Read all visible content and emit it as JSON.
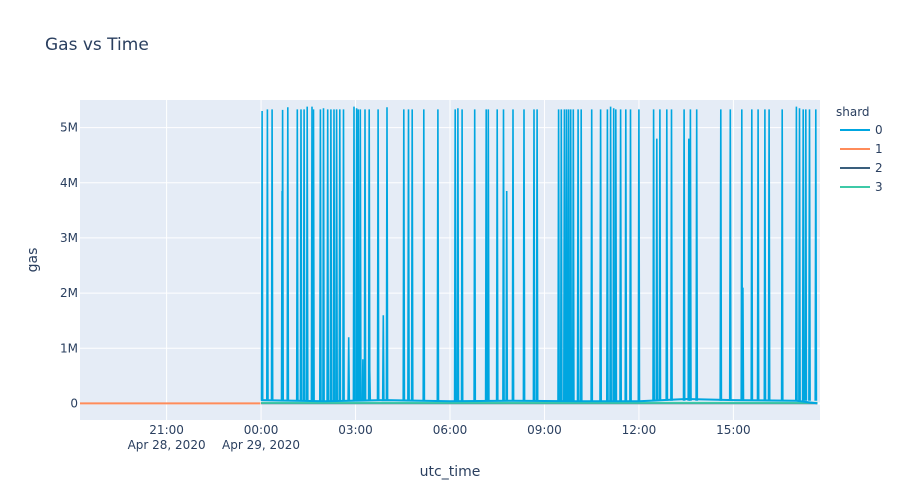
{
  "chart_data": {
    "type": "line",
    "title": "Gas vs Time",
    "xlabel": "utc_time",
    "ylabel": "gas",
    "legend_title": "shard",
    "legend_position": "right",
    "grid": true,
    "colors": {
      "plot_bg": "#e5ecf6",
      "grid": "#ffffff",
      "text": "#2a3f5f"
    },
    "x_start": "2020-04-28 18:15",
    "x_end": "2020-04-29 17:45",
    "ylim": [
      -300000,
      5500000
    ],
    "x_ticks": [
      {
        "t": "2020-04-28 21:00",
        "label": "21:00",
        "sublabel": "Apr 28, 2020"
      },
      {
        "t": "2020-04-29 00:00",
        "label": "00:00",
        "sublabel": "Apr 29, 2020"
      },
      {
        "t": "2020-04-29 03:00",
        "label": "03:00",
        "sublabel": ""
      },
      {
        "t": "2020-04-29 06:00",
        "label": "06:00",
        "sublabel": ""
      },
      {
        "t": "2020-04-29 09:00",
        "label": "09:00",
        "sublabel": ""
      },
      {
        "t": "2020-04-29 12:00",
        "label": "12:00",
        "sublabel": ""
      },
      {
        "t": "2020-04-29 15:00",
        "label": "15:00",
        "sublabel": ""
      }
    ],
    "y_ticks": [
      {
        "v": 0,
        "label": "0"
      },
      {
        "v": 1000000,
        "label": "1M"
      },
      {
        "v": 2000000,
        "label": "2M"
      },
      {
        "v": 3000000,
        "label": "3M"
      },
      {
        "v": 4000000,
        "label": "4M"
      },
      {
        "v": 5000000,
        "label": "5M"
      }
    ],
    "series": [
      {
        "name": "0",
        "color": "#00a6e0",
        "baseline": [
          [
            "2020-04-29 00:00",
            60000
          ],
          [
            "2020-04-29 02:00",
            40000
          ],
          [
            "2020-04-29 04:00",
            60000
          ],
          [
            "2020-04-29 06:00",
            40000
          ],
          [
            "2020-04-29 08:00",
            50000
          ],
          [
            "2020-04-29 10:00",
            40000
          ],
          [
            "2020-04-29 12:00",
            40000
          ],
          [
            "2020-04-29 13:30",
            80000
          ],
          [
            "2020-04-29 15:00",
            60000
          ],
          [
            "2020-04-29 17:00",
            50000
          ],
          [
            "2020-04-29 17:40",
            0
          ]
        ],
        "spikes": [
          [
            "2020-04-29 00:02",
            5300000
          ],
          [
            "2020-04-29 00:12",
            5330000
          ],
          [
            "2020-04-29 00:21",
            5330000
          ],
          [
            "2020-04-29 00:40",
            3850000
          ],
          [
            "2020-04-29 00:41",
            5320000
          ],
          [
            "2020-04-29 00:51",
            5370000
          ],
          [
            "2020-04-29 01:09",
            5330000
          ],
          [
            "2020-04-29 01:16",
            5330000
          ],
          [
            "2020-04-29 01:22",
            5330000
          ],
          [
            "2020-04-29 01:28",
            5380000
          ],
          [
            "2020-04-29 01:37",
            5380000
          ],
          [
            "2020-04-29 01:40",
            5330000
          ],
          [
            "2020-04-29 01:53",
            5330000
          ],
          [
            "2020-04-29 01:59",
            5350000
          ],
          [
            "2020-04-29 02:07",
            5330000
          ],
          [
            "2020-04-29 02:13",
            5330000
          ],
          [
            "2020-04-29 02:19",
            5330000
          ],
          [
            "2020-04-29 02:24",
            5330000
          ],
          [
            "2020-04-29 02:30",
            5330000
          ],
          [
            "2020-04-29 02:37",
            5330000
          ],
          [
            "2020-04-29 02:47",
            1200000
          ],
          [
            "2020-04-29 02:57",
            5380000
          ],
          [
            "2020-04-29 03:02",
            5350000
          ],
          [
            "2020-04-29 03:05",
            5330000
          ],
          [
            "2020-04-29 03:09",
            5330000
          ],
          [
            "2020-04-29 03:14",
            800000
          ],
          [
            "2020-04-29 03:18",
            5330000
          ],
          [
            "2020-04-29 03:26",
            5330000
          ],
          [
            "2020-04-29 03:27",
            600000
          ],
          [
            "2020-04-29 03:43",
            5330000
          ],
          [
            "2020-04-29 03:53",
            1600000
          ],
          [
            "2020-04-29 04:00",
            5370000
          ],
          [
            "2020-04-29 04:32",
            5330000
          ],
          [
            "2020-04-29 04:41",
            5330000
          ],
          [
            "2020-04-29 04:48",
            5330000
          ],
          [
            "2020-04-29 05:10",
            5330000
          ],
          [
            "2020-04-29 05:37",
            5330000
          ],
          [
            "2020-04-29 06:10",
            5330000
          ],
          [
            "2020-04-29 06:15",
            5350000
          ],
          [
            "2020-04-29 06:23",
            5330000
          ],
          [
            "2020-04-29 06:47",
            5330000
          ],
          [
            "2020-04-29 07:09",
            5330000
          ],
          [
            "2020-04-29 07:13",
            5330000
          ],
          [
            "2020-04-29 07:30",
            5330000
          ],
          [
            "2020-04-29 07:42",
            5330000
          ],
          [
            "2020-04-29 07:48",
            3850000
          ],
          [
            "2020-04-29 08:00",
            5330000
          ],
          [
            "2020-04-29 08:21",
            5330000
          ],
          [
            "2020-04-29 08:40",
            5330000
          ],
          [
            "2020-04-29 08:46",
            5330000
          ],
          [
            "2020-04-29 09:27",
            5330000
          ],
          [
            "2020-04-29 09:32",
            5330000
          ],
          [
            "2020-04-29 09:38",
            5330000
          ],
          [
            "2020-04-29 09:42",
            5330000
          ],
          [
            "2020-04-29 09:46",
            5330000
          ],
          [
            "2020-04-29 09:50",
            5330000
          ],
          [
            "2020-04-29 09:55",
            5330000
          ],
          [
            "2020-04-29 10:04",
            5330000
          ],
          [
            "2020-04-29 10:10",
            5330000
          ],
          [
            "2020-04-29 10:30",
            5330000
          ],
          [
            "2020-04-29 10:47",
            5330000
          ],
          [
            "2020-04-29 11:00",
            5330000
          ],
          [
            "2020-04-29 11:06",
            5380000
          ],
          [
            "2020-04-29 11:12",
            5350000
          ],
          [
            "2020-04-29 11:16",
            5330000
          ],
          [
            "2020-04-29 11:25",
            5330000
          ],
          [
            "2020-04-29 11:35",
            5330000
          ],
          [
            "2020-04-29 11:44",
            5330000
          ],
          [
            "2020-04-29 12:00",
            5330000
          ],
          [
            "2020-04-29 12:28",
            5330000
          ],
          [
            "2020-04-29 12:34",
            4800000
          ],
          [
            "2020-04-29 12:40",
            5330000
          ],
          [
            "2020-04-29 12:53",
            5330000
          ],
          [
            "2020-04-29 13:02",
            5330000
          ],
          [
            "2020-04-29 13:26",
            5330000
          ],
          [
            "2020-04-29 13:35",
            4800000
          ],
          [
            "2020-04-29 13:38",
            5330000
          ],
          [
            "2020-04-29 13:50",
            5330000
          ],
          [
            "2020-04-29 14:36",
            5330000
          ],
          [
            "2020-04-29 14:54",
            5330000
          ],
          [
            "2020-04-29 15:16",
            5330000
          ],
          [
            "2020-04-29 15:18",
            2100000
          ],
          [
            "2020-04-29 15:35",
            5330000
          ],
          [
            "2020-04-29 15:47",
            5330000
          ],
          [
            "2020-04-29 16:00",
            5330000
          ],
          [
            "2020-04-29 16:08",
            5330000
          ],
          [
            "2020-04-29 16:33",
            5330000
          ],
          [
            "2020-04-29 17:00",
            5380000
          ],
          [
            "2020-04-29 17:06",
            5350000
          ],
          [
            "2020-04-29 17:13",
            5330000
          ],
          [
            "2020-04-29 17:18",
            5330000
          ],
          [
            "2020-04-29 17:25",
            5330000
          ],
          [
            "2020-04-29 17:37",
            5330000
          ]
        ]
      },
      {
        "name": "1",
        "color": "#ff8c5a",
        "baseline": [
          [
            "2020-04-28 18:15",
            0
          ],
          [
            "2020-04-28 23:59",
            0
          ]
        ],
        "spikes": []
      },
      {
        "name": "2",
        "color": "#3a5f7d",
        "baseline": [
          [
            "2020-04-29 00:00",
            5000
          ],
          [
            "2020-04-29 17:40",
            5000
          ]
        ],
        "spikes": []
      },
      {
        "name": "3",
        "color": "#3ec9a7",
        "baseline": [
          [
            "2020-04-29 00:00",
            10000
          ],
          [
            "2020-04-29 17:40",
            10000
          ]
        ],
        "spikes": []
      }
    ]
  }
}
